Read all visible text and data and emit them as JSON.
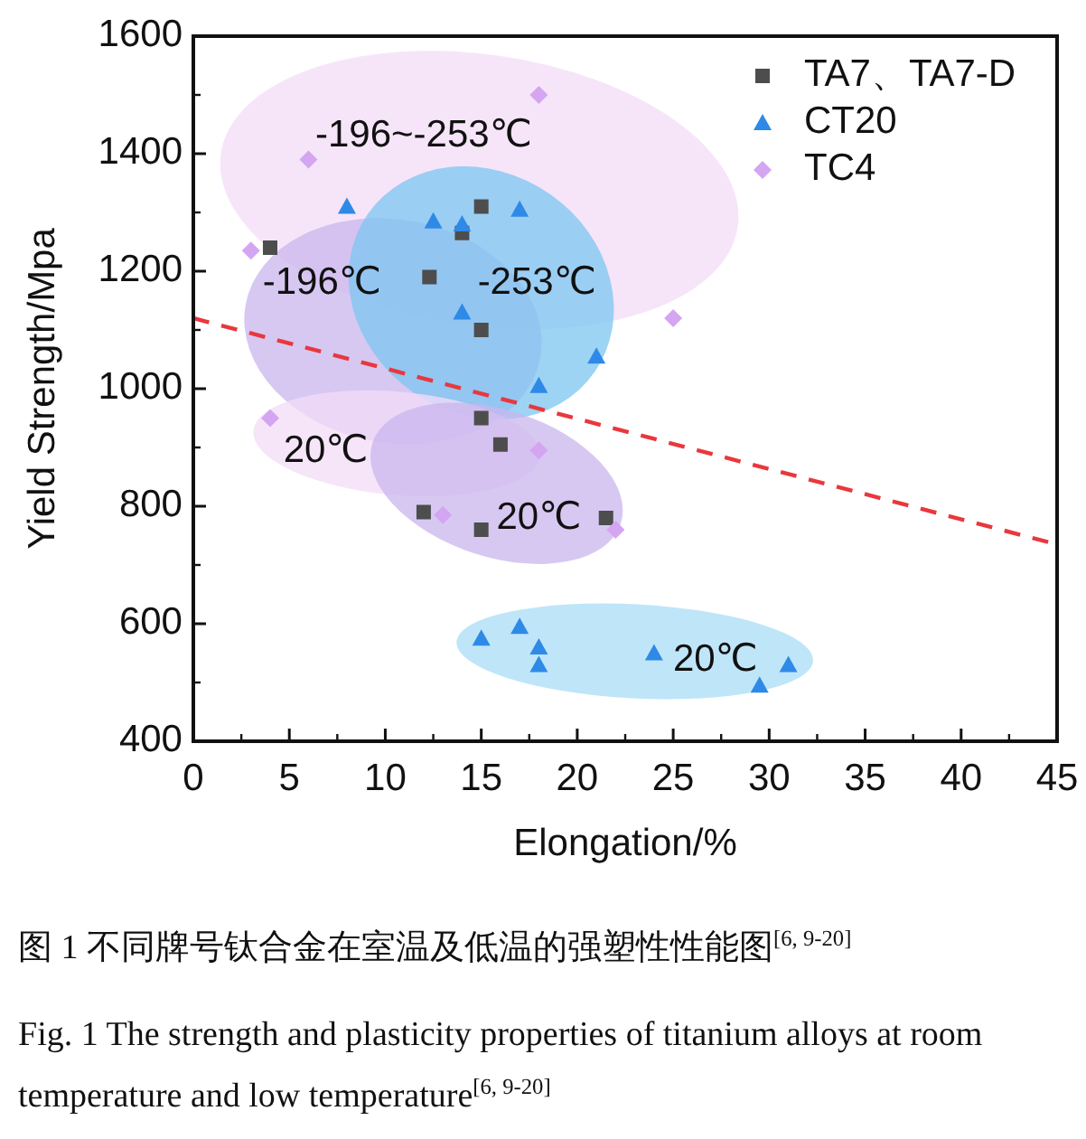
{
  "chart_data": {
    "type": "scatter",
    "xlabel": "Elongation/%",
    "ylabel": "Yield Strength/Mpa",
    "xlim": [
      0,
      45
    ],
    "xticks": [
      0,
      5,
      10,
      15,
      20,
      25,
      30,
      35,
      40,
      45
    ],
    "ylim": [
      400,
      1600
    ],
    "yticks": [
      400,
      600,
      800,
      1000,
      1200,
      1400,
      1600
    ],
    "grid": false,
    "legend": "top right",
    "series": [
      {
        "name": "TA7、TA7-D",
        "color": "#4d4d4d",
        "marker": "square",
        "x": [
          4,
          12.3,
          14,
          15,
          15,
          15,
          16,
          12,
          15,
          21.5
        ],
        "values": [
          1240,
          1190,
          1265,
          1310,
          1100,
          950,
          905,
          790,
          760,
          780
        ]
      },
      {
        "name": "CT20",
        "color": "#2e8ae6",
        "marker": "triangle",
        "x": [
          8,
          12.5,
          14,
          14,
          17,
          18,
          21,
          15,
          17,
          18,
          18,
          24,
          29.5,
          31
        ],
        "values": [
          1310,
          1285,
          1280,
          1130,
          1305,
          1005,
          1055,
          575,
          595,
          560,
          530,
          550,
          495,
          530
        ]
      },
      {
        "name": "TC4",
        "color": "#d4a5f0",
        "marker": "diamond",
        "x": [
          18,
          6,
          3,
          25,
          4,
          18,
          13,
          22
        ],
        "values": [
          1500,
          1390,
          1235,
          1120,
          950,
          895,
          785,
          760
        ]
      },
      {
        "type": "line",
        "color": "#e8383d",
        "line_style": "dashed",
        "marker": "none",
        "x": [
          0,
          45
        ],
        "values": [
          1120,
          735
        ]
      }
    ],
    "annotations": [
      "-196~-253℃",
      "-196℃",
      "-253℃",
      "20℃",
      "20℃",
      "20℃",
      "图 1 不同牌号钛合金在室温及低温的强塑性性能图$^{[6, 9-20]}$",
      "Fig. 1 The strength and plasticity properties of titanium alloys at room temperature and low temperature$^{[6, 9-20]}$"
    ]
  }
}
